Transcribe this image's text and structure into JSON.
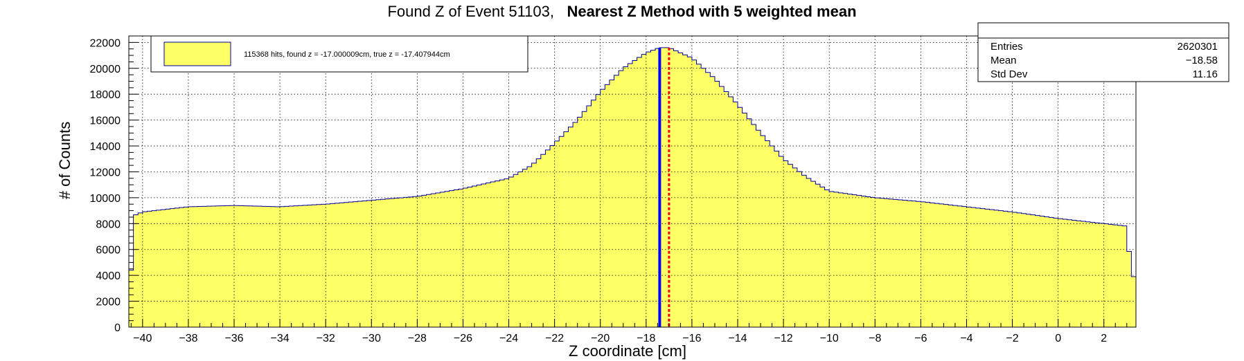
{
  "title": {
    "part1": "Found Z of Event 51103,",
    "part2": "Nearest Z Method with 5 weighted mean"
  },
  "legend": {
    "entry": "115368 hits, found z = -17.000009cm, true z = -17.407944cm"
  },
  "stats": {
    "rows": [
      {
        "label": "Entries",
        "value": "2620301"
      },
      {
        "label": "Mean",
        "value": "−18.58"
      },
      {
        "label": "Std Dev",
        "value": "11.16"
      }
    ]
  },
  "colors": {
    "fill": "#ffff66",
    "outline": "#000099",
    "found_line": "#0000ff",
    "true_line": "#ff0000",
    "grid": "#000000"
  },
  "chart_data": {
    "type": "histogram",
    "xlabel": "Z coordinate [cm]",
    "ylabel": "# of Counts",
    "xlim": [
      -40.6,
      3.4
    ],
    "ylim": [
      0,
      22500
    ],
    "grid": true,
    "legend_position": "top-left",
    "stats_position": "top-right",
    "xticks": [
      -40,
      -38,
      -36,
      -34,
      -32,
      -30,
      -28,
      -26,
      -24,
      -22,
      -20,
      -18,
      -16,
      -14,
      -12,
      -10,
      -8,
      -6,
      -4,
      -2,
      0,
      2
    ],
    "xtick_labels": [
      "−40",
      "−38",
      "−36",
      "−34",
      "−32",
      "−30",
      "−28",
      "−26",
      "−24",
      "−22",
      "−20",
      "−18",
      "−16",
      "−14",
      "−12",
      "−10",
      "−8",
      "−6",
      "−4",
      "−2",
      "0",
      "2"
    ],
    "yticks": [
      0,
      2000,
      4000,
      6000,
      8000,
      10000,
      12000,
      14000,
      16000,
      18000,
      20000,
      22000
    ],
    "ytick_labels": [
      "0",
      "2000",
      "4000",
      "6000",
      "8000",
      "10000",
      "12000",
      "14000",
      "16000",
      "18000",
      "20000",
      "22000"
    ],
    "bin_width": 0.2,
    "bins_x": [
      -40.6,
      -40.4,
      -40.0,
      -38.0,
      -36.0,
      -34.0,
      -32.0,
      -30.0,
      -28.0,
      -26.0,
      -24.0,
      -23.0,
      -22.0,
      -21.0,
      -20.0,
      -19.0,
      -18.0,
      -17.4,
      -17.0,
      -16.0,
      -15.0,
      -14.0,
      -13.0,
      -12.0,
      -11.0,
      -10.0,
      -8.0,
      -6.0,
      -4.0,
      -2.0,
      0.0,
      2.0,
      3.0,
      3.2,
      3.4
    ],
    "counts_profile": [
      4400,
      8600,
      8900,
      9300,
      9400,
      9300,
      9500,
      9800,
      10100,
      10700,
      11500,
      12500,
      14200,
      16000,
      18200,
      20000,
      21200,
      21600,
      21600,
      20800,
      19200,
      17200,
      15000,
      13000,
      11600,
      10500,
      10000,
      9700,
      9300,
      8900,
      8400,
      8000,
      7800,
      3900,
      3900
    ],
    "found_z": -17.000009,
    "true_z": -17.407944
  }
}
